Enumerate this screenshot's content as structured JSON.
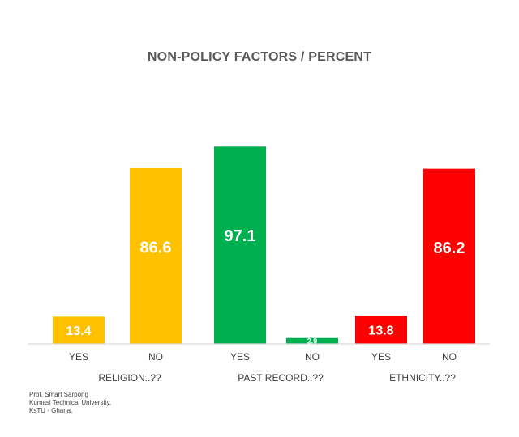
{
  "chart_data": {
    "type": "bar",
    "title": "NON-POLICY FACTORS / PERCENT",
    "categories": [
      "YES",
      "NO",
      "YES",
      "NO",
      "YES",
      "NO"
    ],
    "groups": [
      {
        "label": "RELIGION..??",
        "categories": [
          "YES",
          "NO"
        ],
        "values": [
          13.4,
          86.6
        ],
        "color": "#FFC000"
      },
      {
        "label": "PAST RECORD..??",
        "categories": [
          "YES",
          "NO"
        ],
        "values": [
          97.1,
          2.9
        ],
        "color": "#00B050"
      },
      {
        "label": "ETHNICITY..??",
        "categories": [
          "YES",
          "NO"
        ],
        "values": [
          13.8,
          86.2
        ],
        "color": "#FF0000"
      }
    ],
    "values": [
      13.4,
      86.6,
      97.1,
      2.9,
      13.8,
      86.2
    ],
    "data_labels": [
      "13.4",
      "86.6",
      "97.1",
      "2.9",
      "13.8",
      "86.2"
    ],
    "ylim": [
      0,
      100
    ],
    "grid": false,
    "legend": "none",
    "label_color": "#ffffff",
    "axis_line_color": "#d9d9d9",
    "tick_label_color": "#404040"
  },
  "credit": {
    "line1": "Prof. Smart Sarpong",
    "line2": "Kumasi Technical University,",
    "line3": "KsTU - Ghana."
  }
}
